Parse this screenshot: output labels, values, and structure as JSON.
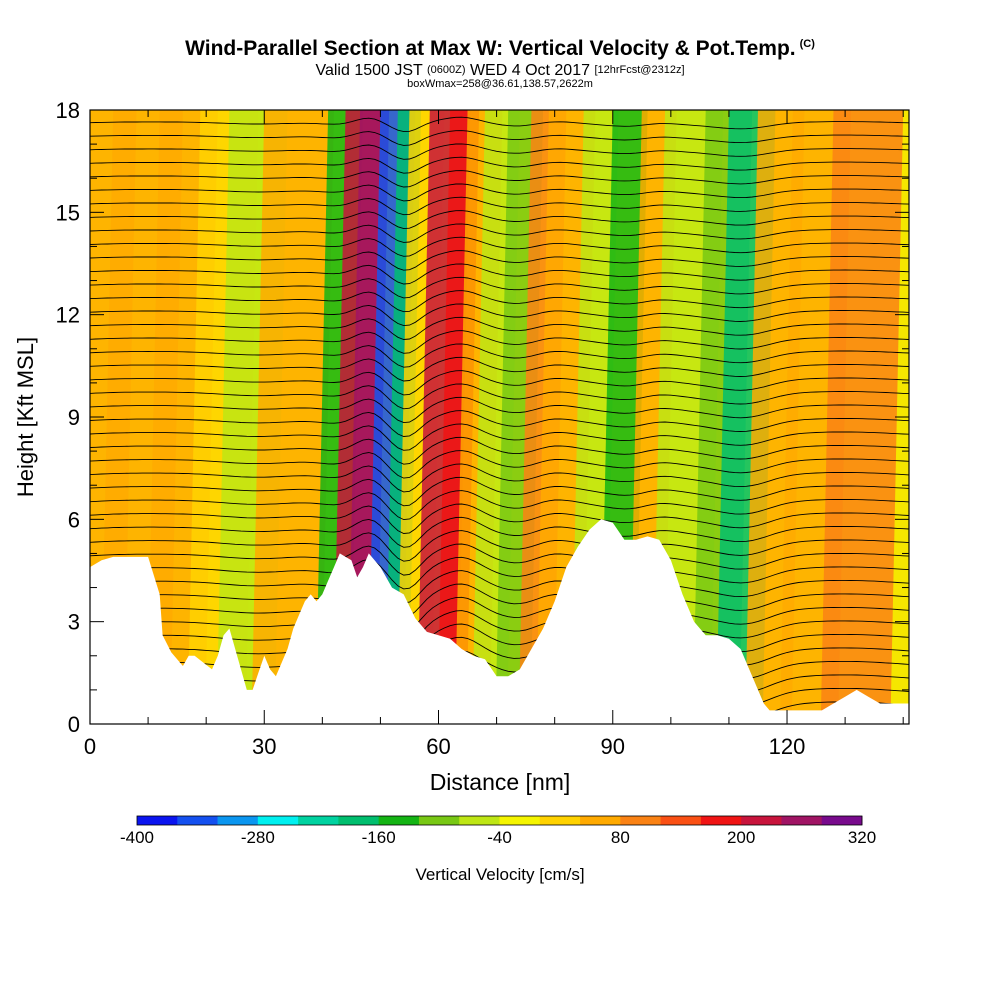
{
  "header": {
    "title": "Wind-Parallel Section at Max W: Vertical Velocity & Pot.Temp.",
    "title_tag": "(C)",
    "valid_prefix": "Valid 1500 JST",
    "valid_utc": "(0600Z)",
    "valid_date": "WED 4 Oct 2017",
    "forecast": "[12hrFcst@2312z]",
    "box_info": "boxWmax=258@36.61,138.57,2622m"
  },
  "colorbar": {
    "label": "Vertical Velocity [cm/s]",
    "tick_labels": [
      "-400",
      "-280",
      "-160",
      "-40",
      "80",
      "200",
      "320"
    ],
    "colors": [
      "#0a14f0",
      "#1450f0",
      "#0a96f0",
      "#00f0f0",
      "#00d2a0",
      "#00be6e",
      "#14b414",
      "#78c814",
      "#bee614",
      "#f5f500",
      "#ffd200",
      "#ffaa00",
      "#fa8214",
      "#fa5014",
      "#f01414",
      "#c8143c",
      "#a01464",
      "#780a8c"
    ]
  },
  "chart_data": {
    "type": "heatmap",
    "title": "Wind-Parallel Section at Max W: Vertical Velocity & Pot.Temp.",
    "xlabel": "Distance [nm]",
    "ylabel": "Height [Kft MSL]",
    "xlim": [
      0,
      141
    ],
    "ylim": [
      0,
      18
    ],
    "x_ticks": [
      0,
      30,
      60,
      90,
      120
    ],
    "x_tick_labels": [
      "0",
      "30",
      "60",
      "90",
      "120"
    ],
    "y_ticks": [
      0,
      3,
      6,
      9,
      12,
      15,
      18
    ],
    "y_tick_labels": [
      "0",
      "3",
      "6",
      "9",
      "12",
      "15",
      "18"
    ],
    "background_color": "#f5e600",
    "velocity_bands": [
      {
        "x": 3,
        "half_width": 5,
        "value": 40
      },
      {
        "x": 10,
        "half_width": 6,
        "value": 60
      },
      {
        "x": 17,
        "half_width": 5,
        "value": 40
      },
      {
        "x": 24,
        "half_width": 5,
        "value": 20
      },
      {
        "x": 29,
        "half_width": 5,
        "value": -60
      },
      {
        "x": 36,
        "half_width": 6,
        "value": 40
      },
      {
        "x": 44,
        "half_width": 3,
        "value": -140
      },
      {
        "x": 47,
        "half_width": 3,
        "value": 200
      },
      {
        "x": 49,
        "half_width": 2.5,
        "value": 260
      },
      {
        "x": 53,
        "half_width": 3,
        "value": -350
      },
      {
        "x": 55,
        "half_width": 2,
        "value": -200
      },
      {
        "x": 58,
        "half_width": 3,
        "value": 20
      },
      {
        "x": 62,
        "half_width": 3.5,
        "value": 200
      },
      {
        "x": 64.5,
        "half_width": 2.5,
        "value": 160
      },
      {
        "x": 68,
        "half_width": 3,
        "value": 60
      },
      {
        "x": 71,
        "half_width": 3,
        "value": -80
      },
      {
        "x": 75,
        "half_width": 3,
        "value": -120
      },
      {
        "x": 79,
        "half_width": 3,
        "value": 100
      },
      {
        "x": 83,
        "half_width": 4,
        "value": 40
      },
      {
        "x": 88,
        "half_width": 3,
        "value": -60
      },
      {
        "x": 93,
        "half_width": 3,
        "value": -140
      },
      {
        "x": 98,
        "half_width": 3,
        "value": 60
      },
      {
        "x": 104,
        "half_width": 5,
        "value": -60
      },
      {
        "x": 110,
        "half_width": 4,
        "value": -120
      },
      {
        "x": 114,
        "half_width": 4,
        "value": -200
      },
      {
        "x": 119,
        "half_width": 4,
        "value": 40
      },
      {
        "x": 126,
        "half_width": 5,
        "value": 60
      },
      {
        "x": 134,
        "half_width": 6,
        "value": 80
      }
    ],
    "terrain_profile": {
      "x": [
        0,
        2,
        4,
        10,
        12,
        12.5,
        14,
        16,
        17,
        18,
        21,
        22,
        23,
        24,
        25,
        26,
        27,
        28,
        29,
        30,
        31,
        32,
        33,
        34,
        35,
        36,
        37,
        38,
        39,
        40,
        41,
        42,
        43,
        44,
        45,
        46,
        47,
        48,
        50,
        52,
        54,
        56,
        58,
        60,
        62,
        64,
        66,
        68,
        70,
        72,
        74,
        76,
        78,
        80,
        82,
        84,
        86,
        88,
        90,
        92,
        94,
        96,
        98,
        100,
        102,
        104,
        106,
        108,
        110,
        112,
        114,
        115,
        116,
        117,
        118,
        119,
        120,
        122,
        124,
        126,
        128,
        130,
        132,
        134,
        136,
        138,
        141
      ],
      "height": [
        4.6,
        4.8,
        4.9,
        4.9,
        3.8,
        2.6,
        2.1,
        1.7,
        2.0,
        2.0,
        1.6,
        2.0,
        2.6,
        2.8,
        2.2,
        1.6,
        1.0,
        1.0,
        1.5,
        2.0,
        1.6,
        1.4,
        1.8,
        2.2,
        2.8,
        3.2,
        3.6,
        3.8,
        3.6,
        3.8,
        4.2,
        4.6,
        5.0,
        4.9,
        4.8,
        4.3,
        4.6,
        5.0,
        4.6,
        4.0,
        3.8,
        3.1,
        2.7,
        2.6,
        2.5,
        2.2,
        2.0,
        1.9,
        1.4,
        1.4,
        1.6,
        2.2,
        2.8,
        3.6,
        4.6,
        5.2,
        5.7,
        6.0,
        5.9,
        5.4,
        5.4,
        5.5,
        5.4,
        4.8,
        3.8,
        3.0,
        2.6,
        2.6,
        2.5,
        2.2,
        1.4,
        1.0,
        0.6,
        0.4,
        0.4,
        0.4,
        0.4,
        0.4,
        0.4,
        0.4,
        0.6,
        0.8,
        1.0,
        0.8,
        0.6,
        0.6,
        0.6
      ]
    },
    "isentrope_count": 44
  }
}
